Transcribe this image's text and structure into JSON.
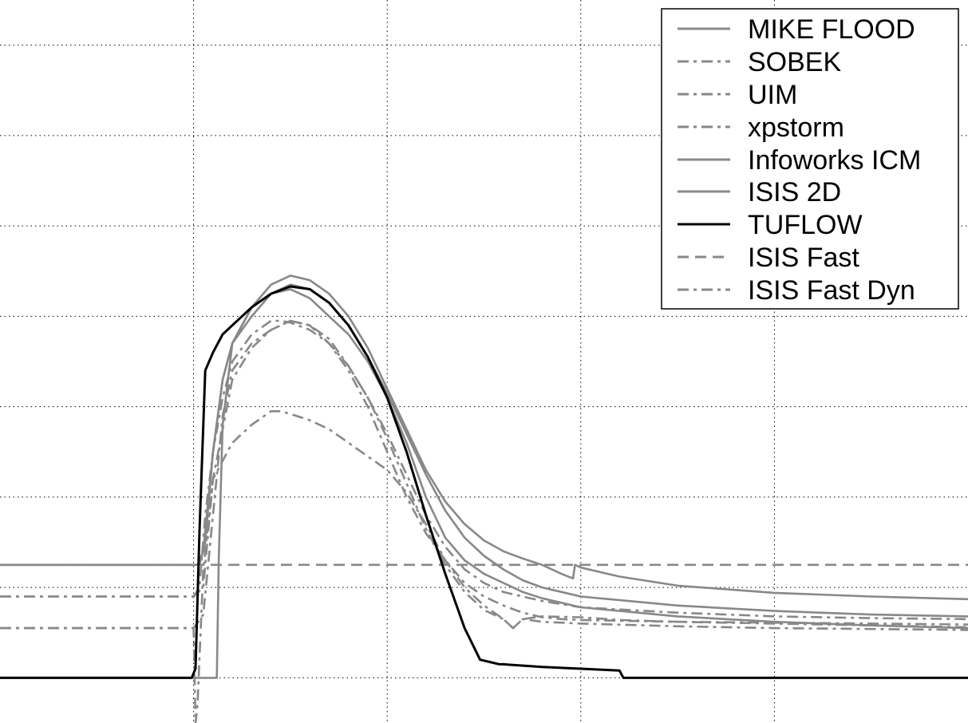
{
  "chart_data": {
    "type": "line",
    "title": "",
    "xlabel": "",
    "ylabel": "",
    "grid": true,
    "legend_position": "top-right",
    "xlim": [
      0,
      50
    ],
    "ylim": [
      -0.5,
      7.5
    ],
    "line_color": "#888888",
    "highlight_color": "#000000",
    "series": [
      {
        "name": "MIKE FLOOD",
        "style": "solid",
        "x": [
          0,
          10.2,
          10.5,
          11,
          11.2,
          11.3,
          11.5,
          12,
          13,
          14,
          15,
          16,
          17,
          18,
          19,
          20,
          21,
          22,
          23,
          24,
          25,
          26,
          27,
          28,
          30,
          35,
          40,
          45,
          50
        ],
        "y": [
          0,
          0,
          0,
          0,
          0,
          1.3,
          2.8,
          3.7,
          4.1,
          4.25,
          4.3,
          4.2,
          4.0,
          3.8,
          3.5,
          3.1,
          2.6,
          2.0,
          1.55,
          1.3,
          1.15,
          1.05,
          0.95,
          0.88,
          0.78,
          0.68,
          0.62,
          0.58,
          0.55
        ]
      },
      {
        "name": "SOBEK",
        "style": "dashdot",
        "x": [
          0,
          10.0,
          10.5,
          11,
          12,
          13,
          14,
          15,
          16,
          17,
          18,
          19,
          20,
          21,
          22,
          23,
          24,
          25,
          25.5,
          26,
          26.5,
          27,
          28,
          30,
          32,
          35,
          40,
          45,
          50
        ],
        "y": [
          0.9,
          0.9,
          1.0,
          2.2,
          3.3,
          3.65,
          3.85,
          3.95,
          3.9,
          3.75,
          3.45,
          3.1,
          2.65,
          2.15,
          1.65,
          1.25,
          0.95,
          0.75,
          0.7,
          0.65,
          0.55,
          0.65,
          0.68,
          0.67,
          0.64,
          0.62,
          0.6,
          0.58,
          0.56
        ]
      },
      {
        "name": "UIM",
        "style": "dashdot",
        "x": [
          0,
          10.0,
          10.1,
          10.2,
          10.5,
          11,
          12,
          13,
          14,
          14.5,
          15,
          16,
          17,
          18,
          19,
          20,
          21,
          22,
          23,
          24,
          25,
          26,
          26.5,
          27,
          28,
          30,
          35,
          40,
          45,
          50
        ],
        "y": [
          0.55,
          0.55,
          -0.5,
          -0.3,
          1.2,
          2.2,
          2.6,
          2.8,
          2.95,
          2.95,
          2.92,
          2.85,
          2.75,
          2.6,
          2.45,
          2.3,
          2.05,
          1.7,
          1.3,
          1.0,
          0.8,
          0.65,
          0.55,
          0.65,
          0.62,
          0.6,
          0.57,
          0.55,
          0.54,
          0.53
        ]
      },
      {
        "name": "xpstorm",
        "style": "dashdot",
        "x": [
          0,
          10.0,
          10.5,
          11,
          11.5,
          12,
          13,
          14,
          15,
          16,
          17,
          18,
          19,
          20,
          21,
          22,
          23,
          24,
          25,
          26,
          27,
          28,
          29,
          30,
          35,
          40,
          45,
          50
        ],
        "y": [
          0.55,
          0.55,
          0.7,
          1.8,
          2.9,
          3.4,
          3.7,
          3.85,
          3.95,
          3.9,
          3.7,
          3.4,
          3.0,
          2.5,
          2.0,
          1.6,
          1.3,
          1.05,
          0.9,
          0.8,
          0.72,
          0.67,
          0.65,
          0.64,
          0.62,
          0.61,
          0.6,
          0.59
        ]
      },
      {
        "name": "Infoworks ICM",
        "style": "solid",
        "x": [
          0,
          10.3,
          10.6,
          11,
          11.5,
          12,
          13,
          14,
          15,
          16,
          17,
          18,
          19,
          20,
          21,
          22,
          23,
          24,
          25,
          26,
          27,
          28,
          29,
          29.6,
          29.7,
          30,
          32,
          35,
          40,
          45,
          50
        ],
        "y": [
          1.25,
          1.25,
          1.5,
          2.5,
          3.3,
          3.7,
          4.1,
          4.35,
          4.45,
          4.4,
          4.25,
          4.0,
          3.65,
          3.2,
          2.75,
          2.3,
          1.95,
          1.7,
          1.52,
          1.4,
          1.32,
          1.25,
          1.15,
          1.1,
          1.25,
          1.22,
          1.12,
          1.02,
          0.94,
          0.9,
          0.87
        ]
      },
      {
        "name": "ISIS 2D",
        "style": "solid",
        "x": [
          0,
          10.2,
          10.5,
          11,
          11.5,
          12,
          13,
          14,
          15,
          16,
          17,
          18,
          19,
          20,
          21,
          22,
          23,
          24,
          25,
          26,
          27,
          28,
          29,
          30,
          35,
          40,
          45,
          50
        ],
        "y": [
          1.25,
          1.25,
          1.4,
          2.5,
          3.3,
          3.7,
          4.0,
          4.25,
          4.35,
          4.3,
          4.15,
          3.9,
          3.55,
          3.15,
          2.7,
          2.25,
          1.85,
          1.55,
          1.35,
          1.2,
          1.08,
          1.0,
          0.95,
          0.9,
          0.8,
          0.74,
          0.7,
          0.68
        ]
      },
      {
        "name": "TUFLOW",
        "style": "solid",
        "color": "#000000",
        "x": [
          0,
          9.9,
          10.1,
          10.3,
          10.6,
          11,
          11.5,
          12,
          13,
          14,
          15,
          16,
          17,
          18,
          19,
          20,
          21,
          22,
          23,
          24,
          24.8,
          25.2,
          25.8,
          26,
          28,
          30,
          32,
          32.2,
          35,
          40,
          45,
          50
        ],
        "y": [
          0,
          0,
          0.1,
          1.6,
          3.4,
          3.6,
          3.8,
          3.9,
          4.1,
          4.25,
          4.33,
          4.3,
          4.15,
          3.9,
          3.55,
          3.1,
          2.5,
          1.8,
          1.15,
          0.55,
          0.2,
          0.18,
          0.15,
          0.15,
          0.12,
          0.1,
          0.08,
          0.0,
          0.0,
          0.0,
          0.0,
          0.0
        ]
      },
      {
        "name": "ISIS Fast",
        "style": "dashed",
        "x": [
          0,
          10,
          20,
          30,
          40,
          50
        ],
        "y": [
          1.25,
          1.25,
          1.25,
          1.25,
          1.25,
          1.25
        ]
      },
      {
        "name": "ISIS Fast Dyn",
        "style": "dashdot",
        "x": [
          0,
          10.0,
          10.3,
          10.6,
          11,
          11.5,
          12,
          13,
          14,
          14.5,
          15,
          16,
          17,
          18,
          19,
          20,
          21,
          22,
          23,
          24,
          25,
          26,
          27,
          28,
          30,
          35,
          40,
          45,
          50
        ],
        "y": [
          0.9,
          0.9,
          1.0,
          1.8,
          2.5,
          3.1,
          3.5,
          3.8,
          3.95,
          3.95,
          3.93,
          3.85,
          3.7,
          3.45,
          3.1,
          2.7,
          2.25,
          1.8,
          1.45,
          1.2,
          1.05,
          0.95,
          0.9,
          0.85,
          0.78,
          0.72,
          0.68,
          0.66,
          0.65
        ]
      }
    ]
  }
}
